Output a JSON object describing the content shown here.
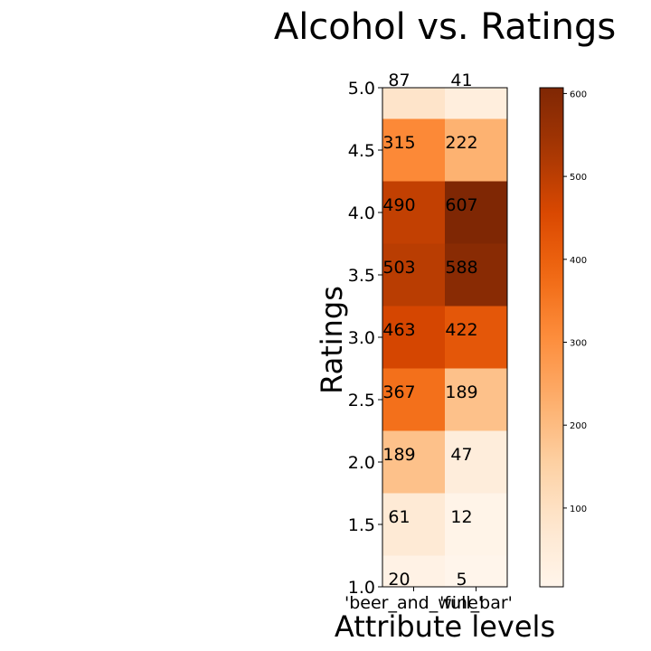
{
  "chart_data": {
    "type": "heatmap",
    "title": "Alcohol vs. Ratings",
    "xlabel": "Attribute levels",
    "ylabel": "Ratings",
    "x_categories": [
      "'beer_and_wine'",
      "'full_bar'"
    ],
    "y_categories": [
      "1.0",
      "1.5",
      "2.0",
      "2.5",
      "3.0",
      "3.5",
      "4.0",
      "4.5",
      "5.0"
    ],
    "values": [
      [
        20,
        5
      ],
      [
        61,
        12
      ],
      [
        189,
        47
      ],
      [
        367,
        189
      ],
      [
        463,
        422
      ],
      [
        503,
        588
      ],
      [
        490,
        607
      ],
      [
        315,
        222
      ],
      [
        87,
        41
      ]
    ],
    "colorbar": {
      "ticks": [
        100,
        200,
        300,
        400,
        500,
        600
      ],
      "vmin": 5,
      "vmax": 607,
      "colormap": "Oranges"
    },
    "yticks": [
      "1.0",
      "1.5",
      "2.0",
      "2.5",
      "3.0",
      "3.5",
      "4.0",
      "4.5",
      "5.0"
    ],
    "grid": false,
    "legend": "colorbar-right"
  }
}
